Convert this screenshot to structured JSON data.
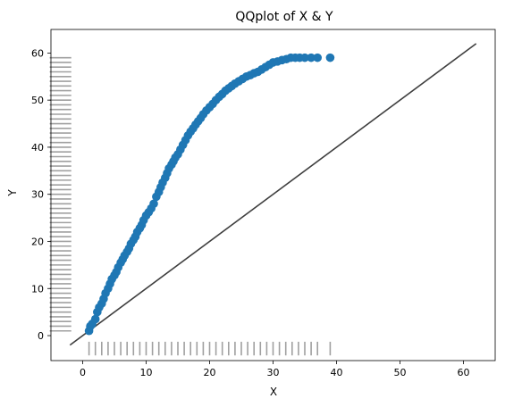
{
  "chart_data": {
    "type": "scatter",
    "title": "QQplot of X & Y",
    "xlabel": "X",
    "ylabel": "Y",
    "xlim": [
      -5,
      65
    ],
    "ylim": [
      -5.3,
      65
    ],
    "xticks": [
      0,
      10,
      20,
      30,
      40,
      50,
      60
    ],
    "yticks": [
      0,
      10,
      20,
      30,
      40,
      50,
      60
    ],
    "grid": false,
    "colors": {
      "points": "#1f77b4",
      "reference_line": "#3f3f3f",
      "rug": "#808080"
    },
    "reference_line": {
      "x": [
        -2,
        62
      ],
      "y": [
        -2,
        62
      ]
    },
    "quantiles": {
      "x": [
        1,
        1.2,
        1.5,
        2,
        2.3,
        2.6,
        3,
        3.3,
        3.6,
        4,
        4.3,
        4.6,
        5,
        5.3,
        5.6,
        6,
        6.3,
        6.6,
        7,
        7.3,
        7.6,
        8,
        8.3,
        8.6,
        9,
        9.3,
        9.6,
        10,
        10.4,
        10.8,
        11.2,
        11.6,
        12,
        12.3,
        12.6,
        13,
        13.3,
        13.6,
        14,
        14.3,
        14.6,
        15,
        15.4,
        15.8,
        16.2,
        16.6,
        17,
        17.4,
        17.8,
        18.2,
        18.6,
        19,
        19.5,
        20,
        20.5,
        21,
        21.5,
        22,
        22.5,
        23,
        23.5,
        24,
        24.6,
        25.2,
        25.8,
        26.4,
        27,
        27.6,
        28.2,
        28.8,
        29.4,
        30,
        30.7,
        31.4,
        32.1,
        32.8,
        33.5,
        34.2,
        35,
        36,
        37,
        39
      ],
      "y": [
        1,
        2,
        2.5,
        3.5,
        5,
        6,
        6.8,
        7.8,
        9,
        10,
        11,
        12,
        12.8,
        13.5,
        14.5,
        15.5,
        16.2,
        17,
        17.8,
        18.5,
        19.5,
        20.3,
        21,
        22,
        22.8,
        23.5,
        24.5,
        25.5,
        26.2,
        27,
        28,
        29.5,
        30.5,
        31.5,
        32.5,
        33.5,
        34.5,
        35.5,
        36.3,
        37,
        37.8,
        38.5,
        39.5,
        40.5,
        41.5,
        42.5,
        43.3,
        44,
        44.8,
        45.5,
        46.2,
        47,
        47.8,
        48.5,
        49.2,
        50,
        50.7,
        51.3,
        52,
        52.5,
        53,
        53.5,
        54,
        54.5,
        55,
        55.3,
        55.7,
        56,
        56.5,
        57,
        57.5,
        58,
        58.2,
        58.5,
        58.7,
        59,
        59,
        59,
        59,
        59,
        59,
        59
      ]
    },
    "rug_x": [
      1,
      2,
      3,
      4,
      5,
      6,
      7,
      8,
      9,
      10,
      11,
      12,
      13,
      14,
      15,
      16,
      17,
      18,
      19,
      20,
      21,
      22,
      23,
      24,
      25,
      26,
      27,
      28,
      29,
      30,
      31,
      32,
      33,
      34,
      35,
      36,
      37,
      39
    ],
    "rug_y": [
      1,
      2,
      3,
      4,
      5,
      6,
      7,
      8,
      9,
      10,
      11,
      12,
      13,
      14,
      15,
      16,
      17,
      18,
      19,
      20,
      21,
      22,
      23,
      24,
      25,
      26,
      27,
      28,
      29,
      30,
      31,
      32,
      33,
      34,
      35,
      36,
      37,
      38,
      39,
      40,
      41,
      42,
      43,
      44,
      45,
      46,
      47,
      48,
      49,
      50,
      51,
      52,
      53,
      54,
      55,
      56,
      57,
      58,
      59
    ]
  }
}
